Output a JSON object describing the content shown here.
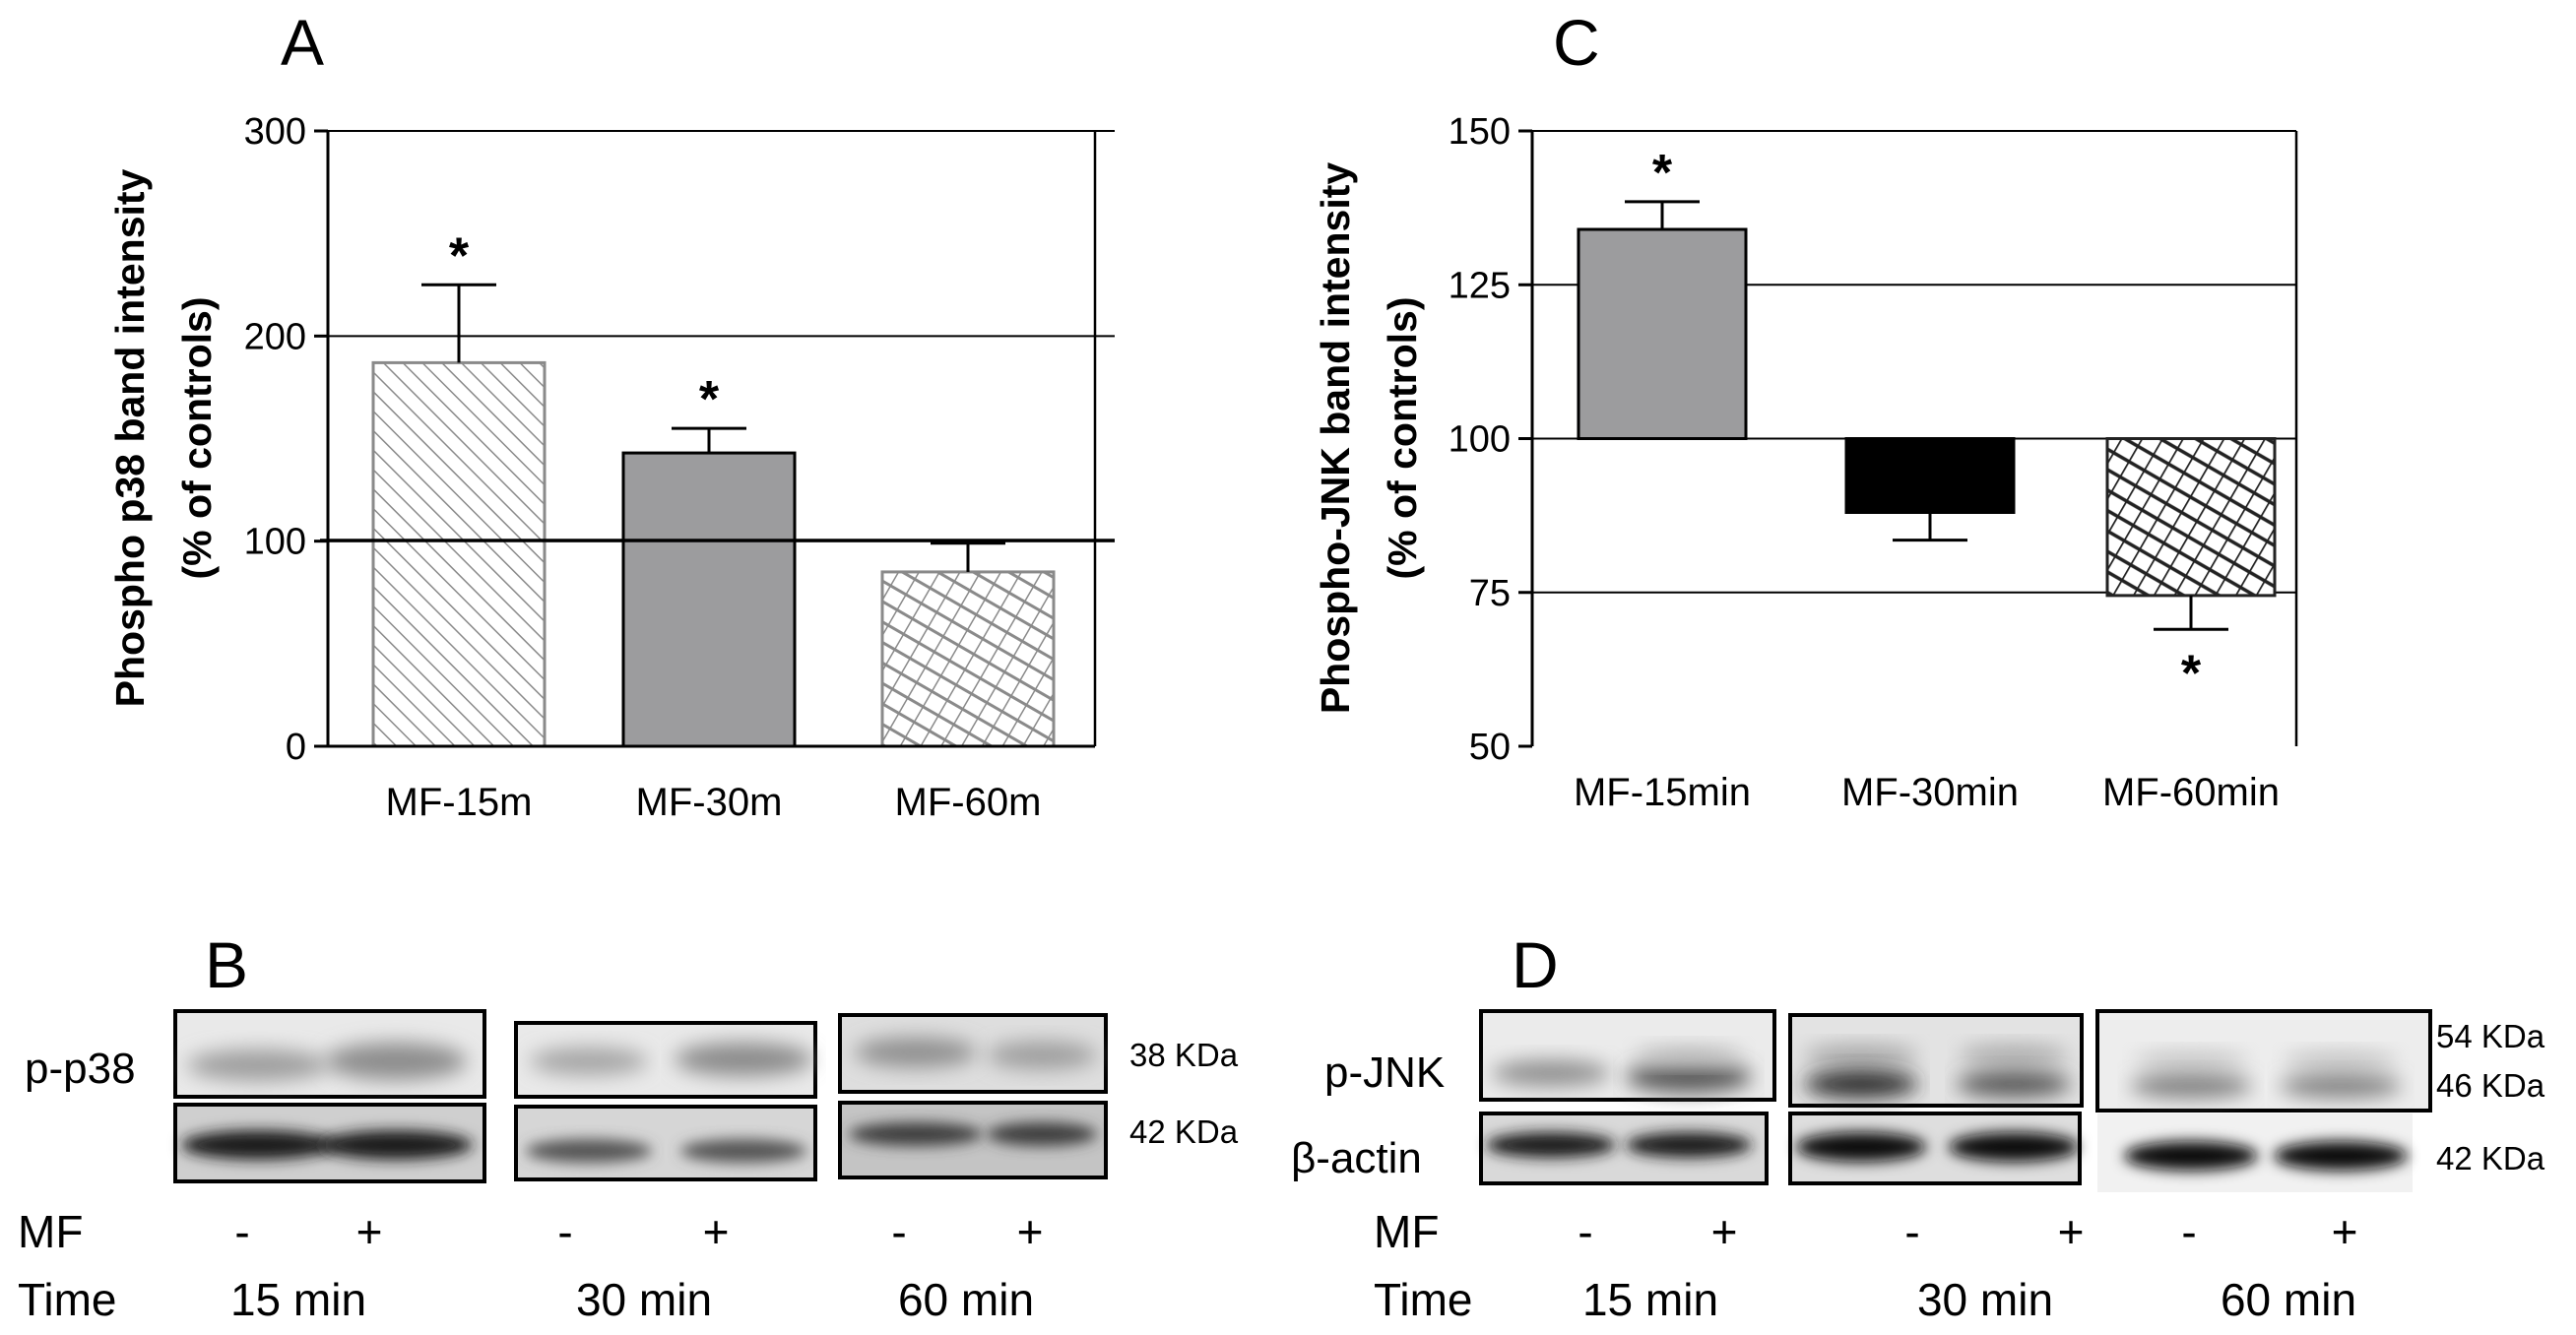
{
  "panels": {
    "A": "A",
    "B": "B",
    "C": "C",
    "D": "D"
  },
  "chart_data": [
    {
      "panel": "A",
      "type": "bar",
      "ylabel_line1": "Phospho p38 band intensity",
      "ylabel_line2": "(% of controls)",
      "ylim": [
        0,
        300
      ],
      "yticks": [
        0,
        100,
        200,
        300
      ],
      "baseline": 100,
      "categories": [
        "MF-15m",
        "MF-30m",
        "MF-60m"
      ],
      "values": [
        187,
        143,
        85
      ],
      "errors": [
        38,
        12,
        14
      ],
      "significance": [
        "*",
        "*",
        ""
      ],
      "fills": [
        "diag-light",
        "solid-gray",
        "crosshatch-light"
      ],
      "grid": "horizontal"
    },
    {
      "panel": "C",
      "type": "bar",
      "ylabel_line1": "Phospho-JNK band intensity",
      "ylabel_line2": "(% of controls)",
      "ylim": [
        50,
        150
      ],
      "yticks": [
        50,
        75,
        100,
        125,
        150
      ],
      "baseline": 100,
      "categories": [
        "MF-15min",
        "MF-30min",
        "MF-60min"
      ],
      "values": [
        134,
        88,
        74.5
      ],
      "errors": [
        4.5,
        4.5,
        5.5
      ],
      "significance": [
        "*",
        "",
        "*"
      ],
      "fills": [
        "solid-gray",
        "solid-black",
        "crosshatch-dark"
      ],
      "grid": "horizontal"
    }
  ],
  "blots": {
    "B": {
      "row_label": "p-p38",
      "kda_top": "38 KDa",
      "kda_bottom": "42 KDa",
      "mf_label": "MF",
      "time_label": "Time",
      "mf_signs": [
        "-",
        "+",
        "-",
        "+",
        "-",
        "+"
      ],
      "times": [
        "15 min",
        "30 min",
        "60 min"
      ]
    },
    "D": {
      "row_label_top": "p-JNK",
      "row_label_bottom": "β-actin",
      "kda_54": "54 KDa",
      "kda_46": "46 KDa",
      "kda_42": "42 KDa",
      "mf_label": "MF",
      "time_label": "Time",
      "mf_signs": [
        "-",
        "+",
        "-",
        "+",
        "-",
        "+"
      ],
      "times": [
        "15 min",
        "30 min",
        "60 min"
      ]
    }
  },
  "colors": {
    "bar_gray": "#9c9c9e",
    "bar_black": "#000000",
    "blot_bg_light": "#e6e6e6",
    "blot_bg_dark": "#c8c8c8",
    "band_faint": "#a8a8a8",
    "band_dark": "#151515"
  }
}
